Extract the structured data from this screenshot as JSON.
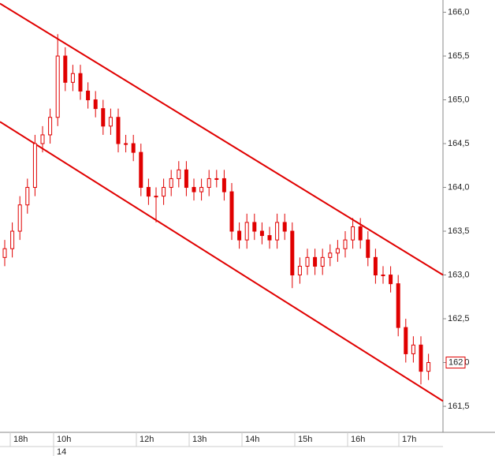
{
  "chart_data": {
    "type": "candlestick",
    "color": "#e00000",
    "x": [
      1.5,
      3.9,
      6.3,
      8.7,
      11.1,
      13.5,
      15.9,
      18.3,
      20.7,
      23.1,
      25.5,
      27.9,
      30.3,
      32.7,
      35.1,
      37.5,
      39.9,
      42.3,
      44.7,
      47.1,
      49.5,
      51.9,
      54.3,
      56.7,
      59.1,
      61.5,
      63.9,
      66.3,
      68.7,
      71.1,
      73.5,
      75.9,
      78.3,
      80.7,
      83.1,
      85.5,
      87.9,
      90.3,
      92.7,
      95.1,
      97.5,
      99.9,
      102.3,
      104.7,
      107.1,
      109.5,
      111.9,
      114.3,
      116.7,
      119.1,
      121.5,
      123.9,
      126.3,
      128.7,
      131.1,
      133.5,
      135.9
    ],
    "open": [
      163.2,
      163.3,
      163.5,
      163.8,
      164.0,
      164.5,
      164.6,
      164.8,
      165.5,
      165.2,
      165.3,
      165.1,
      165.0,
      164.9,
      164.7,
      164.8,
      164.5,
      164.5,
      164.4,
      164.0,
      163.9,
      163.9,
      164.0,
      164.1,
      164.2,
      164.0,
      163.95,
      164.0,
      164.1,
      164.1,
      163.95,
      163.5,
      163.4,
      163.6,
      163.5,
      163.45,
      163.4,
      163.6,
      163.5,
      163.0,
      163.1,
      163.2,
      163.1,
      163.2,
      163.25,
      163.3,
      163.4,
      163.55,
      163.4,
      163.2,
      163.0,
      163.0,
      162.9,
      162.4,
      162.1,
      162.2,
      161.9
    ],
    "high": [
      163.4,
      163.6,
      163.9,
      164.1,
      164.6,
      164.7,
      164.9,
      165.75,
      165.6,
      165.4,
      165.4,
      165.2,
      165.1,
      165.0,
      164.9,
      164.9,
      164.6,
      164.6,
      164.5,
      164.1,
      164.0,
      164.1,
      164.2,
      164.3,
      164.3,
      164.1,
      164.1,
      164.2,
      164.2,
      164.2,
      164.05,
      163.6,
      163.7,
      163.7,
      163.6,
      163.55,
      163.7,
      163.7,
      163.6,
      163.2,
      163.3,
      163.3,
      163.3,
      163.35,
      163.4,
      163.5,
      163.65,
      163.65,
      163.5,
      163.3,
      163.1,
      163.1,
      163.0,
      162.5,
      162.3,
      162.3,
      162.1
    ],
    "low": [
      163.1,
      163.2,
      163.4,
      163.7,
      163.9,
      164.4,
      164.5,
      164.7,
      165.1,
      165.1,
      165.0,
      164.9,
      164.8,
      164.6,
      164.6,
      164.4,
      164.4,
      164.3,
      163.9,
      163.8,
      163.6,
      163.8,
      163.9,
      164.0,
      163.9,
      163.85,
      163.85,
      163.9,
      164.0,
      163.85,
      163.4,
      163.3,
      163.3,
      163.4,
      163.35,
      163.3,
      163.3,
      163.4,
      162.85,
      162.9,
      163.0,
      163.0,
      163.0,
      163.1,
      163.15,
      163.2,
      163.3,
      163.3,
      163.1,
      162.9,
      162.9,
      162.8,
      162.3,
      162.0,
      162.0,
      161.75,
      161.8
    ],
    "close": [
      163.3,
      163.5,
      163.8,
      164.0,
      164.5,
      164.6,
      164.8,
      165.5,
      165.2,
      165.3,
      165.1,
      165.0,
      164.9,
      164.7,
      164.8,
      164.5,
      164.5,
      164.4,
      164.0,
      163.9,
      163.9,
      164.0,
      164.1,
      164.2,
      164.0,
      163.95,
      164.0,
      164.1,
      164.1,
      163.95,
      163.5,
      163.4,
      163.6,
      163.5,
      163.45,
      163.4,
      163.6,
      163.5,
      163.0,
      163.1,
      163.2,
      163.1,
      163.2,
      163.25,
      163.3,
      163.4,
      163.55,
      163.4,
      163.2,
      163.0,
      163.0,
      162.9,
      162.4,
      162.1,
      162.2,
      161.9,
      162.0
    ],
    "trendlines": [
      {
        "x": [
          0,
          140.5
        ],
        "values": [
          166.1,
          163.0
        ]
      },
      {
        "x": [
          0,
          140.5
        ],
        "values": [
          164.75,
          161.56
        ]
      }
    ],
    "last_price": 162,
    "xlim": [
      0,
      140.5
    ],
    "xticks": [
      {
        "value": 3.25,
        "label": "18h"
      },
      {
        "value": 17,
        "label": "10h"
      },
      {
        "value": 43.25,
        "label": "12h"
      },
      {
        "value": 60,
        "label": "13h"
      },
      {
        "value": 76.75,
        "label": "14h"
      },
      {
        "value": 93.5,
        "label": "15h"
      },
      {
        "value": 110.25,
        "label": "16h"
      },
      {
        "value": 126.5,
        "label": "17h"
      }
    ],
    "date_label": {
      "value": 17,
      "label": "14"
    },
    "ylim": [
      161.23,
      166.14
    ],
    "yticks": [
      {
        "value": 166,
        "label": "166,0"
      },
      {
        "value": 165.5,
        "label": "165,5"
      },
      {
        "value": 165,
        "label": "165,0"
      },
      {
        "value": 164.5,
        "label": "164,5"
      },
      {
        "value": 164,
        "label": "164,0"
      },
      {
        "value": 163.5,
        "label": "163,5"
      },
      {
        "value": 163,
        "label": "163,0"
      },
      {
        "value": 162.5,
        "label": "162,5"
      },
      {
        "value": 162,
        "label": "162,0"
      },
      {
        "value": 161.5,
        "label": "161,5"
      }
    ]
  }
}
